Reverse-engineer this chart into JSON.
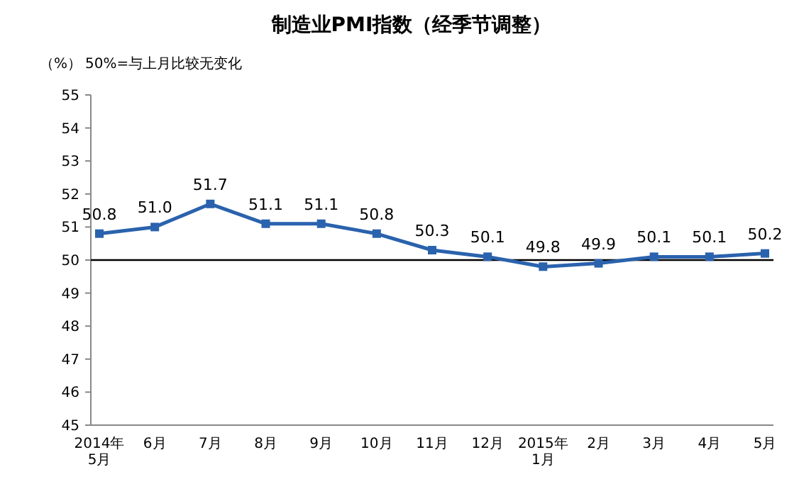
{
  "chart_data": {
    "type": "line",
    "title": "制造业PMI指数（经季节调整）",
    "ylabel": "（%）",
    "annotations": [
      "50%=与上月比较无变化"
    ],
    "categories": [
      "2014年\n5月",
      "6月",
      "7月",
      "8月",
      "9月",
      "10月",
      "11月",
      "12月",
      "2015年\n1月",
      "2月",
      "3月",
      "4月",
      "5月"
    ],
    "series": [
      {
        "color": "#2a62ad",
        "values": [
          50.8,
          51.0,
          51.7,
          51.1,
          51.1,
          50.8,
          50.3,
          50.1,
          49.8,
          49.9,
          50.1,
          50.1,
          50.2
        ],
        "value_labels": [
          "50.8",
          "51.0",
          "51.7",
          "51.1",
          "51.1",
          "50.8",
          "50.3",
          "50.1",
          "49.8",
          "49.9",
          "50.1",
          "50.1",
          "50.2"
        ]
      }
    ],
    "ylim": [
      45,
      55
    ],
    "yticks": [
      45,
      46,
      47,
      48,
      49,
      50,
      51,
      52,
      53,
      54,
      55
    ],
    "ref_lines": [
      {
        "axis": "y",
        "value": 50,
        "color": "#000000"
      }
    ],
    "marker": "square",
    "grid": false
  }
}
